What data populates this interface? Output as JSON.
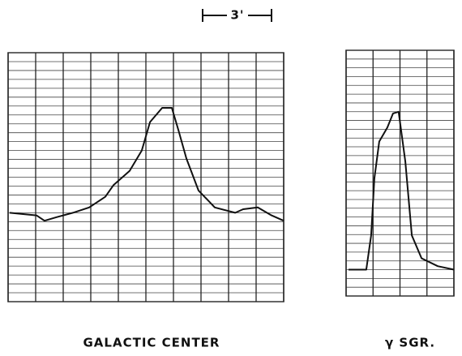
{
  "chart_data": [
    {
      "type": "line",
      "title": "GALACTIC CENTER",
      "annotation": "3'",
      "x": [
        0.06,
        1.03,
        1.32,
        1.76,
        2.35,
        2.94,
        3.53,
        3.82,
        4.41,
        4.85,
        5.15,
        5.59,
        5.94,
        6.18,
        6.47,
        6.91,
        7.5,
        8.24,
        8.53,
        9.06,
        9.56,
        10
      ],
      "values": [
        10.0,
        9.7,
        9.1,
        9.5,
        10.0,
        10.6,
        11.8,
        13.1,
        14.7,
        17.0,
        20.2,
        21.8,
        21.8,
        19.3,
        16.1,
        12.5,
        10.6,
        10.0,
        10.4,
        10.6,
        9.7,
        9.1
      ],
      "color": "#111111",
      "grid": true,
      "xlim": [
        0,
        10
      ],
      "ylim": [
        0,
        28
      ],
      "xticks": [
        0,
        1,
        2,
        3,
        4,
        5,
        6,
        7,
        8,
        9,
        10
      ],
      "yticks": [
        0,
        1,
        2,
        3,
        4,
        5,
        6,
        7,
        8,
        9,
        10,
        11,
        12,
        13,
        14,
        15,
        16,
        17,
        18,
        19,
        20,
        21,
        22,
        23,
        24,
        25,
        26,
        27,
        28
      ]
    },
    {
      "type": "line",
      "title": "γ SGR.",
      "x": [
        0.09,
        0.75,
        0.93,
        1.05,
        1.23,
        1.53,
        1.74,
        1.95,
        2.2,
        2.44,
        2.8,
        3.4,
        4.0
      ],
      "values": [
        3.0,
        3.0,
        6.9,
        13.4,
        17.6,
        19.2,
        20.8,
        21.0,
        15.3,
        6.9,
        4.3,
        3.4,
        3.0
      ],
      "color": "#111111",
      "grid": true,
      "xlim": [
        0,
        4
      ],
      "ylim": [
        0,
        28
      ],
      "xticks": [
        0,
        1,
        2,
        3,
        4
      ],
      "yticks": [
        0,
        1,
        2,
        3,
        4,
        5,
        6,
        7,
        8,
        9,
        10,
        11,
        12,
        13,
        14,
        15,
        16,
        17,
        18,
        19,
        20,
        21,
        22,
        23,
        24,
        25,
        26,
        27,
        28
      ]
    }
  ]
}
